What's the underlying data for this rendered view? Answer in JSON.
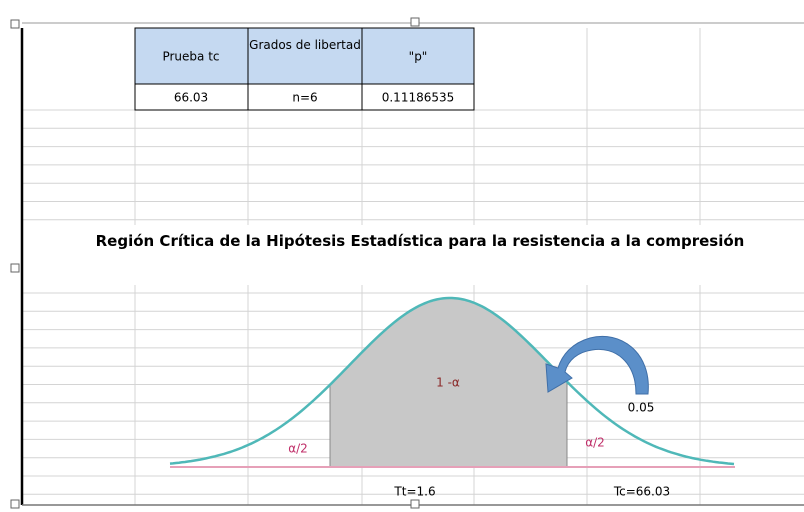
{
  "table": {
    "header": [
      "Prueba tc",
      "Grados de libertad",
      "\"p\""
    ],
    "rows": [
      [
        "66.03",
        "n=6",
        "0.11186535"
      ]
    ]
  },
  "diagram": {
    "title": "Región Crítica de la Hipótesis Estadística para la resistencia a la compresión",
    "center_label": "1 -α",
    "left_tail_label": "α/2",
    "right_tail_label": "α/2",
    "significance_label": "0.05",
    "tt_label": "Tt=1.6",
    "tc_label": "Tc=66.03"
  }
}
